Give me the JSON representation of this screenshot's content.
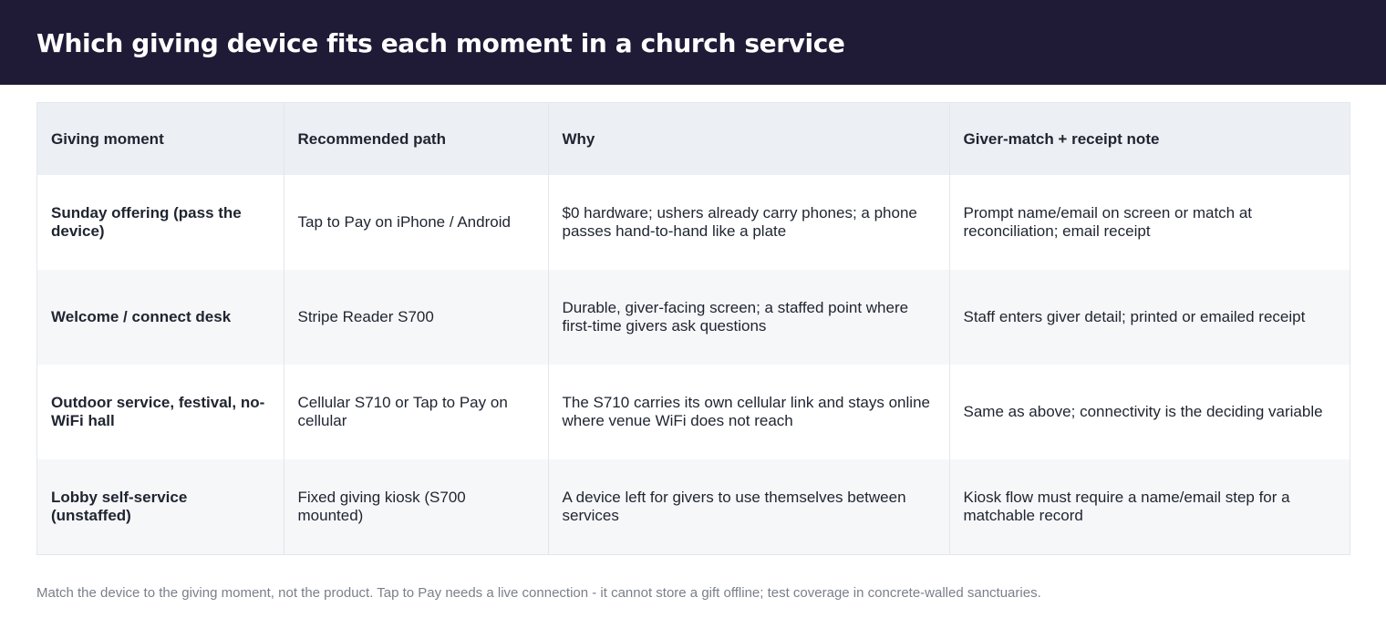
{
  "header": {
    "title": "Which giving device fits each moment in a church service"
  },
  "table": {
    "columns": [
      "Giving moment",
      "Recommended path",
      "Why",
      "Giver-match + receipt note"
    ],
    "rows": [
      {
        "moment": "Sunday offering (pass the device)",
        "path": "Tap to Pay on iPhone / Android",
        "why": "$0 hardware; ushers already carry phones; a phone passes hand-to-hand like a plate",
        "note": "Prompt name/email on screen or match at reconciliation; email receipt"
      },
      {
        "moment": "Welcome / connect desk",
        "path": "Stripe Reader S700",
        "why": "Durable, giver-facing screen; a staffed point where first-time givers ask questions",
        "note": "Staff enters giver detail; printed or emailed receipt"
      },
      {
        "moment": "Outdoor service, festival, no-WiFi hall",
        "path": "Cellular S710 or Tap to Pay on cellular",
        "why": "The S710 carries its own cellular link and stays online where venue WiFi does not reach",
        "note": "Same as above; connectivity is the deciding variable"
      },
      {
        "moment": "Lobby self-service (unstaffed)",
        "path": "Fixed giving kiosk (S700 mounted)",
        "why": "A device left for givers to use themselves between services",
        "note": "Kiosk flow must require a name/email step for a matchable record"
      }
    ]
  },
  "footnote": "Match the device to the giving moment, not the product. Tap to Pay needs a live connection - it cannot store a gift offline; test coverage in concrete-walled sanctuaries."
}
